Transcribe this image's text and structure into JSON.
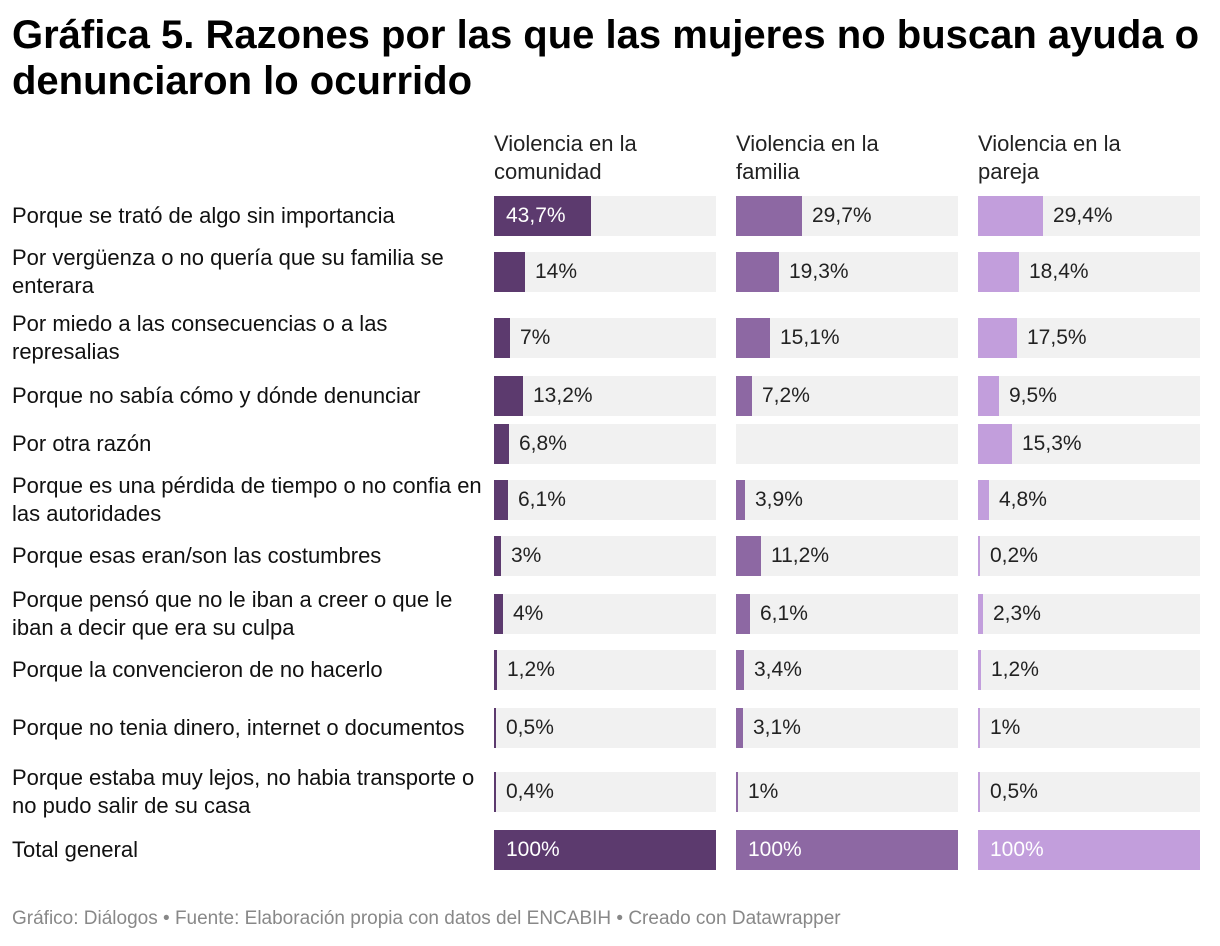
{
  "chart_data": {
    "type": "bar",
    "title": "Gráfica 5. Razones por las que las mujeres no buscan ayuda o denunciaron lo ocurrido",
    "categories": [
      "Porque se trató de algo sin importancia",
      "Por vergüenza o no quería que su familia se enterara",
      "Por miedo a las consecuencias o a las represalias",
      "Porque no sabía cómo y dónde denunciar",
      "Por otra razón",
      "Porque es una pérdida de tiempo o no confia en las autoridades",
      "Porque esas eran/son las costumbres",
      "Porque pensó que no le iban a creer o que le iban a decir que era su culpa",
      "Porque la convencieron de no hacerlo",
      "Porque no tenia dinero, internet o documentos",
      "Porque estaba muy lejos, no habia transporte o no pudo salir de su casa",
      "Total general"
    ],
    "series": [
      {
        "name": "Violencia en la comunidad",
        "color": "#5c3a6e",
        "values": [
          43.7,
          14,
          7,
          13.2,
          6.8,
          6.1,
          3,
          4,
          1.2,
          0.5,
          0.4,
          100
        ],
        "labels": [
          "43,7%",
          "14%",
          "7%",
          "13,2%",
          "6,8%",
          "6,1%",
          "3%",
          "4%",
          "1,2%",
          "0,5%",
          "0,4%",
          "100%"
        ]
      },
      {
        "name": "Violencia en la familia",
        "color": "#8d68a3",
        "values": [
          29.7,
          19.3,
          15.1,
          7.2,
          null,
          3.9,
          11.2,
          6.1,
          3.4,
          3.1,
          1,
          100
        ],
        "labels": [
          "29,7%",
          "19,3%",
          "15,1%",
          "7,2%",
          "",
          "3,9%",
          "11,2%",
          "6,1%",
          "3,4%",
          "3,1%",
          "1%",
          "100%"
        ]
      },
      {
        "name": "Violencia en la pareja",
        "color": "#c29edc",
        "values": [
          29.4,
          18.4,
          17.5,
          9.5,
          15.3,
          4.8,
          0.2,
          2.3,
          1.2,
          1,
          0.5,
          100
        ],
        "labels": [
          "29,4%",
          "18,4%",
          "17,5%",
          "9,5%",
          "15,3%",
          "4,8%",
          "0,2%",
          "2,3%",
          "1,2%",
          "1%",
          "0,5%",
          "100%"
        ]
      }
    ],
    "xlim": [
      0,
      100
    ],
    "unit": "%",
    "footer": "Gráfico: Diálogos • Fuente: Elaboración propia con datos del ENCABIH • Creado con Datawrapper"
  }
}
